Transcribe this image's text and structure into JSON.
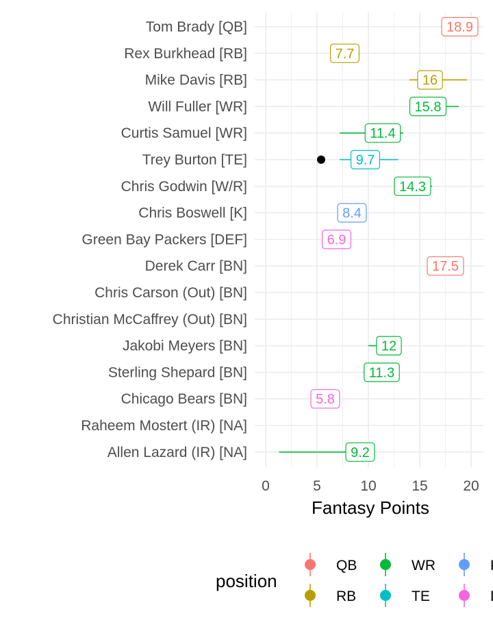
{
  "chart_data": {
    "type": "scatter",
    "xlabel": "Fantasy Points",
    "ylabel": "",
    "xlim": [
      0,
      21
    ],
    "xticks": [
      0,
      5,
      10,
      15,
      20
    ],
    "grid": true,
    "legend_position": "bottom",
    "legend_title": "position",
    "legend_entries": [
      "QB",
      "RB",
      "WR",
      "TE",
      "K",
      "DEF"
    ],
    "colors": {
      "QB": "#F8766D",
      "RB": "#B79F00",
      "WR": "#00BA38",
      "TE": "#00BFC4",
      "K": "#619CFF",
      "DEF": "#F564E3",
      "actual_point": "#000000"
    },
    "players": [
      {
        "label": "Tom Brady [QB]",
        "position": "QB",
        "projection": 18.9,
        "low": 17.1,
        "high": 20.6
      },
      {
        "label": "Rex Burkhead [RB]",
        "position": "RB",
        "projection": 7.7,
        "low": null,
        "high": null
      },
      {
        "label": "Mike Davis [RB]",
        "position": "RB",
        "projection": 16,
        "low": 14.0,
        "high": 19.6
      },
      {
        "label": "Will Fuller [WR]",
        "position": "WR",
        "projection": 15.8,
        "low": 14.0,
        "high": 18.8
      },
      {
        "label": "Curtis Samuel [WR]",
        "position": "WR",
        "projection": 11.4,
        "low": 7.2,
        "high": 13.4
      },
      {
        "label": "Trey Burton [TE]",
        "position": "TE",
        "projection": 9.7,
        "low": 7.2,
        "high": 12.9,
        "actual": 5.4
      },
      {
        "label": "Chris Godwin [W/R]",
        "position": "WR",
        "projection": 14.3,
        "low": 12.6,
        "high": 16.2
      },
      {
        "label": "Chris Boswell [K]",
        "position": "K",
        "projection": 8.4,
        "low": null,
        "high": null
      },
      {
        "label": "Green Bay Packers [DEF]",
        "position": "DEF",
        "projection": 6.9,
        "low": null,
        "high": null
      },
      {
        "label": "Derek Carr [BN]",
        "position": "QB",
        "projection": 17.5,
        "low": 16.5,
        "high": 18.3
      },
      {
        "label": "Chris Carson (Out) [BN]",
        "position": null,
        "projection": null,
        "low": null,
        "high": null
      },
      {
        "label": "Christian McCaffrey (Out) [BN]",
        "position": null,
        "projection": null,
        "low": null,
        "high": null
      },
      {
        "label": "Jakobi Meyers [BN]",
        "position": "WR",
        "projection": 12,
        "low": 10.0,
        "high": 12.5
      },
      {
        "label": "Sterling Shepard [BN]",
        "position": "WR",
        "projection": 11.3,
        "low": 9.5,
        "high": 11.9
      },
      {
        "label": "Chicago Bears [BN]",
        "position": "DEF",
        "projection": 5.8,
        "low": null,
        "high": null
      },
      {
        "label": "Raheem Mostert (IR) [NA]",
        "position": null,
        "projection": null,
        "low": null,
        "high": null
      },
      {
        "label": "Allen Lazard (IR) [NA]",
        "position": "WR",
        "projection": 9.2,
        "low": 1.3,
        "high": 10.0
      }
    ]
  }
}
